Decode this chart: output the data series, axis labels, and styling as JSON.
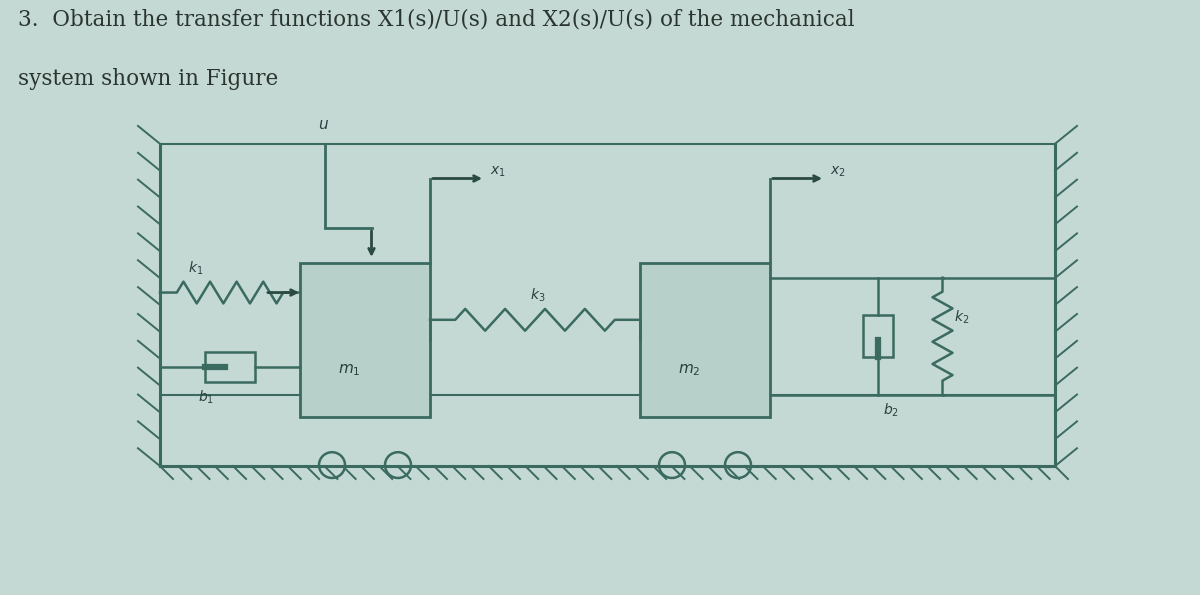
{
  "bg_color": "#c5d9d4",
  "wall_color": "#3a6a60",
  "mass_facecolor": "#b8d0ca",
  "mass_edgecolor": "#3a6a60",
  "spring_color": "#3a6a60",
  "damper_color": "#3a6a60",
  "line_color": "#3a6a60",
  "arrow_color": "#2a4a42",
  "text_color": "#2a4040",
  "title_text1": "3.  Obtain the transfer functions X1(s)/U(s) and X2(s)/U(s) of the mechanical",
  "title_text2": "system shown in Figure",
  "title_fontsize": 15.5,
  "title_color": "#2a3530",
  "label_k1": "$k_1$",
  "label_k2": "$k_2$",
  "label_k3": "$k_3$",
  "label_b1": "$b_1$",
  "label_b2": "$b_2$",
  "label_m1": "$m_1$",
  "label_m2": "$m_2$",
  "label_u": "$u$",
  "label_x1": "$x_1$",
  "label_x2": "$x_2$"
}
